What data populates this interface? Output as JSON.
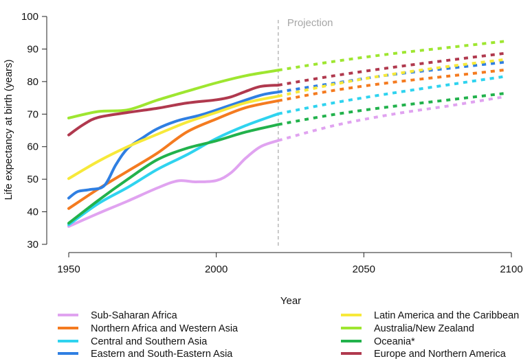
{
  "chart_data": {
    "type": "line",
    "xlabel": "Year",
    "ylabel": "Life expectancy at birth (years)",
    "xlim": [
      1950,
      2100
    ],
    "ylim": [
      30,
      100
    ],
    "xticks": [
      1950,
      2000,
      2050,
      2100
    ],
    "yticks": [
      30,
      40,
      50,
      60,
      70,
      80,
      90,
      100
    ],
    "grid": false,
    "legend": "bottom",
    "projection_label": "Projection",
    "projection_start_year": 2021,
    "series": [
      {
        "name": "Sub-Saharan Africa",
        "color": "#e0a3f0",
        "x": [
          1950,
          1960,
          1970,
          1980,
          1987,
          1993,
          2000,
          2005,
          2010,
          2015,
          2021
        ],
        "y": [
          35.5,
          39.5,
          43.3,
          47.3,
          49.5,
          49.2,
          49.6,
          52,
          56.5,
          60,
          61.9
        ],
        "projection": {
          "x": [
            2021,
            2040,
            2060,
            2080,
            2098
          ],
          "y": [
            61.9,
            66.5,
            70,
            72.7,
            75.4
          ]
        }
      },
      {
        "name": "Northern Africa and Western Asia",
        "color": "#f47b20",
        "x": [
          1950,
          1960,
          1970,
          1980,
          1990,
          2000,
          2010,
          2021
        ],
        "y": [
          41,
          47,
          52.5,
          58,
          64.5,
          68.5,
          72,
          74.1
        ],
        "projection": {
          "x": [
            2021,
            2040,
            2060,
            2080,
            2098
          ],
          "y": [
            74.1,
            77.3,
            79.8,
            81.8,
            83.6
          ]
        }
      },
      {
        "name": "Central and Southern Asia",
        "color": "#2fd3ef",
        "x": [
          1950,
          1960,
          1970,
          1980,
          1990,
          2000,
          2010,
          2021
        ],
        "y": [
          36,
          42.5,
          47.5,
          53,
          57.5,
          62.5,
          66.5,
          70.1
        ],
        "projection": {
          "x": [
            2021,
            2040,
            2060,
            2080,
            2098
          ],
          "y": [
            70.1,
            73.5,
            76.5,
            79.2,
            81.6
          ]
        }
      },
      {
        "name": "Eastern and South-Eastern Asia",
        "color": "#2f7fe2",
        "x": [
          1950,
          1953,
          1957,
          1962,
          1966,
          1970,
          1975,
          1980,
          1987,
          1995,
          2005,
          2015,
          2021
        ],
        "y": [
          44.2,
          46.2,
          46.8,
          48,
          54.5,
          59.5,
          62.7,
          65.5,
          68,
          69.8,
          72.8,
          75.8,
          76.8
        ],
        "projection": {
          "x": [
            2021,
            2040,
            2060,
            2080,
            2098
          ],
          "y": [
            76.8,
            79.5,
            82.2,
            84.2,
            86
          ]
        }
      },
      {
        "name": "Latin America and the Caribbean",
        "color": "#f7e93a",
        "x": [
          1950,
          1960,
          1970,
          1980,
          1990,
          2000,
          2010,
          2021
        ],
        "y": [
          50.2,
          55.5,
          60,
          63.8,
          67.5,
          70.5,
          73.5,
          75.5
        ],
        "projection": {
          "x": [
            2021,
            2040,
            2060,
            2080,
            2098
          ],
          "y": [
            75.5,
            79.2,
            82.3,
            84.8,
            86.8
          ]
        }
      },
      {
        "name": "Australia/New Zealand",
        "color": "#9ee630",
        "x": [
          1950,
          1960,
          1970,
          1980,
          1990,
          2000,
          2010,
          2021
        ],
        "y": [
          68.8,
          70.8,
          71.3,
          74.3,
          77,
          79.6,
          81.8,
          83.5
        ],
        "projection": {
          "x": [
            2021,
            2040,
            2060,
            2080,
            2098
          ],
          "y": [
            83.5,
            86.2,
            88.6,
            90.6,
            92.4
          ]
        }
      },
      {
        "name": "Oceania*",
        "color": "#22b24c",
        "x": [
          1950,
          1960,
          1970,
          1980,
          1990,
          2000,
          2010,
          2021
        ],
        "y": [
          36.5,
          43.5,
          50,
          56,
          59.5,
          61.8,
          64.5,
          66.8
        ],
        "projection": {
          "x": [
            2021,
            2040,
            2060,
            2080,
            2098
          ],
          "y": [
            66.8,
            69.9,
            72.4,
            74.5,
            76.4
          ]
        }
      },
      {
        "name": "Europe and Northern America",
        "color": "#b0394e",
        "x": [
          1950,
          1955,
          1960,
          1970,
          1980,
          1990,
          2000,
          2005,
          2010,
          2015,
          2021
        ],
        "y": [
          63.6,
          66.8,
          69,
          70.5,
          71.8,
          73.4,
          74.4,
          75.3,
          77,
          78.5,
          78.9
        ],
        "projection": {
          "x": [
            2021,
            2040,
            2060,
            2080,
            2098
          ],
          "y": [
            78.9,
            81.8,
            84.4,
            86.7,
            88.7
          ]
        }
      }
    ]
  }
}
